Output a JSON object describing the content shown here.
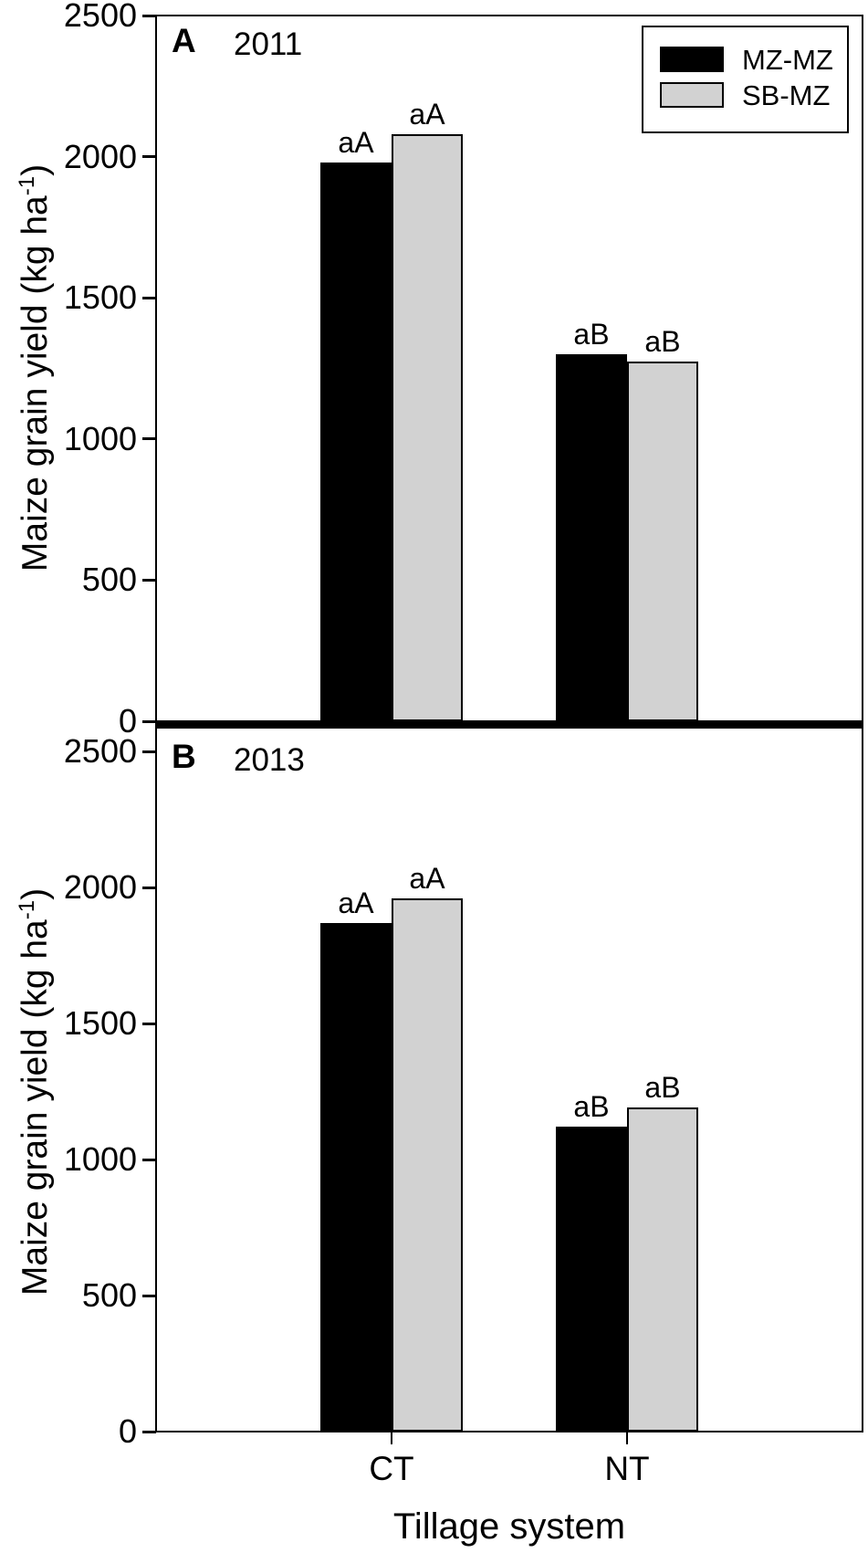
{
  "figure": {
    "background_color": "#ffffff",
    "axis_color": "#000000"
  },
  "legend": {
    "items": [
      {
        "label": "MZ-MZ",
        "color": "#000000"
      },
      {
        "label": "SB-MZ",
        "color": "#d2d2d2"
      }
    ]
  },
  "x_axis": {
    "title": "Tillage system",
    "categories": [
      "CT",
      "NT"
    ]
  },
  "y_axis": {
    "title_main": "Maize grain yield (kg ha",
    "title_sup": "-1",
    "title_close": ")",
    "ticks": [
      0,
      500,
      1000,
      1500,
      2000,
      2500
    ],
    "range": [
      0,
      2500
    ]
  },
  "chart_data": [
    {
      "type": "bar",
      "panel_label": "A",
      "year_label": "2011",
      "title": "2011",
      "xlabel": "Tillage system",
      "ylabel": "Maize grain yield (kg ha-1)",
      "categories": [
        "CT",
        "NT"
      ],
      "series": [
        {
          "name": "MZ-MZ",
          "color": "#000000",
          "values": [
            1980,
            1300
          ],
          "bar_annotations": [
            "aA",
            "aB"
          ]
        },
        {
          "name": "SB-MZ",
          "color": "#d2d2d2",
          "values": [
            2080,
            1275
          ],
          "bar_annotations": [
            "aA",
            "aB"
          ]
        }
      ],
      "ylim": [
        0,
        2500
      ],
      "grid": false,
      "legend_position": "top-right"
    },
    {
      "type": "bar",
      "panel_label": "B",
      "year_label": "2013",
      "title": "2013",
      "xlabel": "Tillage system",
      "ylabel": "Maize grain yield (kg ha-1)",
      "categories": [
        "CT",
        "NT"
      ],
      "series": [
        {
          "name": "MZ-MZ",
          "color": "#000000",
          "values": [
            1870,
            1120
          ],
          "bar_annotations": [
            "aA",
            "aB"
          ]
        },
        {
          "name": "SB-MZ",
          "color": "#d2d2d2",
          "values": [
            1960,
            1190
          ],
          "bar_annotations": [
            "aA",
            "aB"
          ]
        }
      ],
      "ylim": [
        0,
        2500
      ],
      "grid": false,
      "legend_position": "none"
    }
  ]
}
